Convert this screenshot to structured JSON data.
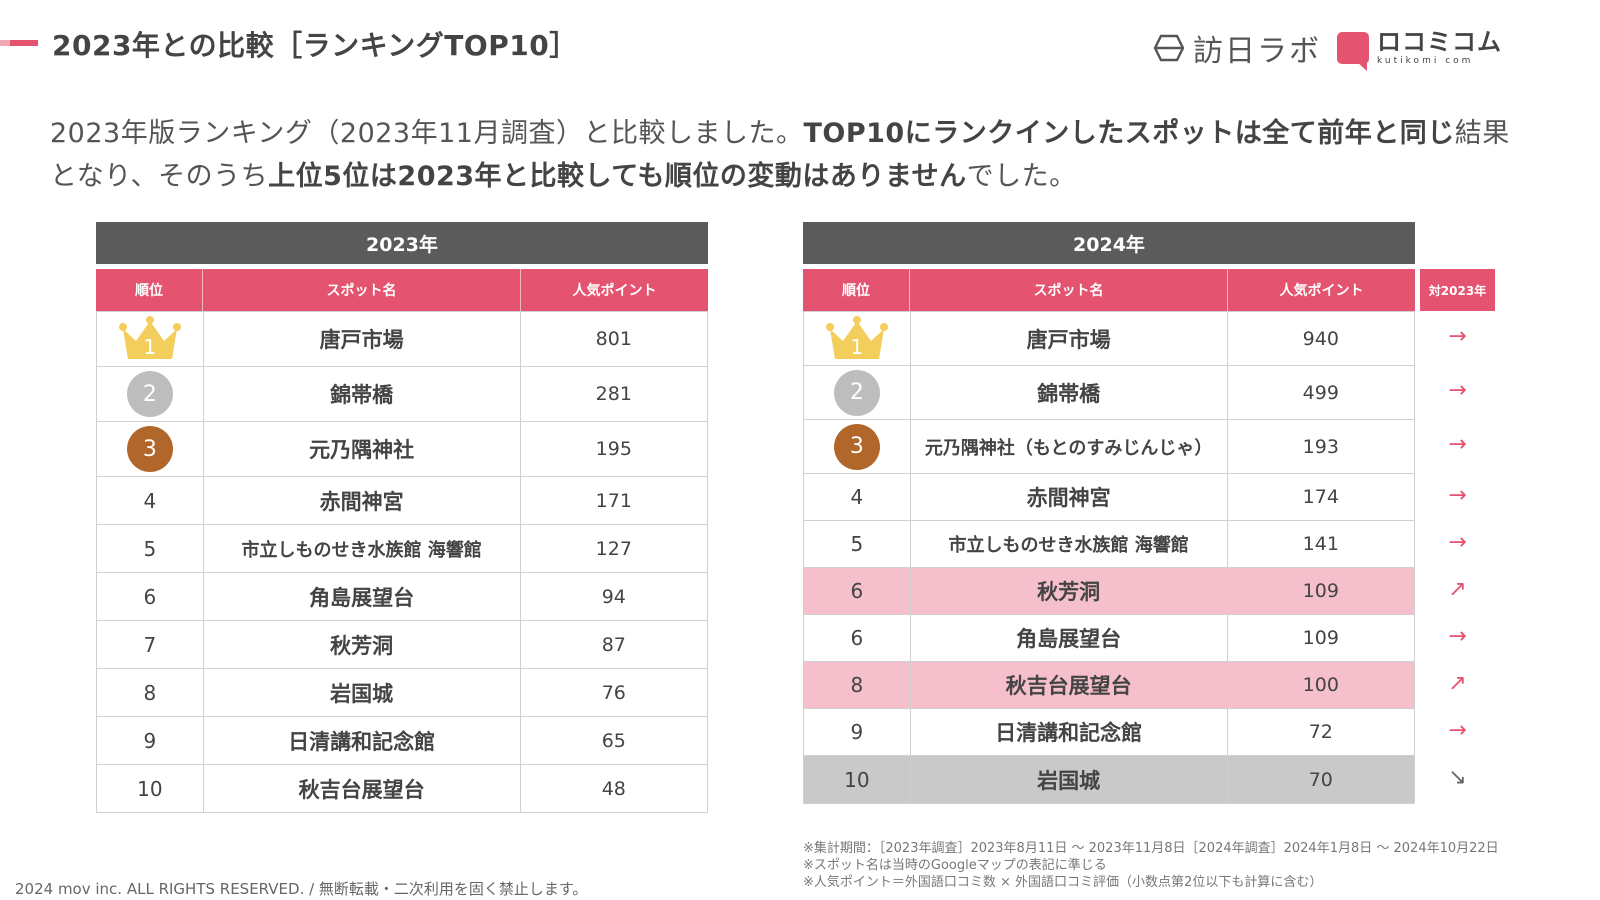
{
  "header": {
    "title": "2023年との比較［ランキングTOP10］",
    "logo_lab_text": "訪日ラボ",
    "logo_kuti_text": "ロコミコム",
    "logo_kuti_domain": "kutikomi com"
  },
  "lead": {
    "part1": "2023年版ランキング（2023年11月調査）と比較しました。",
    "part2": "TOP10にランクインしたスポットは全て前年と同じ",
    "part3": "結果となり、そのうち",
    "part4": "上位5位は2023年と比較しても順位の変動はありません",
    "part5": "でした。"
  },
  "columns": {
    "rank": "順位",
    "spot": "スポット名",
    "points": "人気ポイント",
    "compare": "対2023年"
  },
  "table_2023": {
    "year": "2023年",
    "rows": [
      {
        "rank": "1",
        "spot": "唐戸市場",
        "points": "801"
      },
      {
        "rank": "2",
        "spot": "錦帯橋",
        "points": "281"
      },
      {
        "rank": "3",
        "spot": "元乃隅神社",
        "points": "195"
      },
      {
        "rank": "4",
        "spot": "赤間神宮",
        "points": "171"
      },
      {
        "rank": "5",
        "spot": "市立しものせき水族館 海響館",
        "points": "127"
      },
      {
        "rank": "6",
        "spot": "角島展望台",
        "points": "94"
      },
      {
        "rank": "7",
        "spot": "秋芳洞",
        "points": "87"
      },
      {
        "rank": "8",
        "spot": "岩国城",
        "points": "76"
      },
      {
        "rank": "9",
        "spot": "日清講和記念館",
        "points": "65"
      },
      {
        "rank": "10",
        "spot": "秋吉台展望台",
        "points": "48"
      }
    ]
  },
  "table_2024": {
    "year": "2024年",
    "rows": [
      {
        "rank": "1",
        "spot": "唐戸市場",
        "points": "940",
        "trend": "→"
      },
      {
        "rank": "2",
        "spot": "錦帯橋",
        "points": "499",
        "trend": "→"
      },
      {
        "rank": "3",
        "spot": "元乃隅神社（もとのすみじんじゃ）",
        "points": "193",
        "trend": "→"
      },
      {
        "rank": "4",
        "spot": "赤間神宮",
        "points": "174",
        "trend": "→"
      },
      {
        "rank": "5",
        "spot": "市立しものせき水族館 海響館",
        "points": "141",
        "trend": "→"
      },
      {
        "rank": "6",
        "spot": "秋芳洞",
        "points": "109",
        "trend": "↗"
      },
      {
        "rank": "6",
        "spot": "角島展望台",
        "points": "109",
        "trend": "→"
      },
      {
        "rank": "8",
        "spot": "秋吉台展望台",
        "points": "100",
        "trend": "↗"
      },
      {
        "rank": "9",
        "spot": "日清講和記念館",
        "points": "72",
        "trend": "→"
      },
      {
        "rank": "10",
        "spot": "岩国城",
        "points": "70",
        "trend": "↘"
      }
    ]
  },
  "notes": [
    "※集計期間：［2023年調査］2023年8月11日 〜 2023年11月8日［2024年調査］2024年1月8日 〜 2024年10月22日",
    "※スポット名は当時のGoogleマップの表記に準じる",
    "※人気ポイント＝外国語口コミ数 × 外国語口コミ評価（小数点第2位以下も計算に含む）"
  ],
  "footer": "2024 mov inc. ALL RIGHTS RESERVED. / 無断転載・二次利用を固く禁止します。",
  "colors": {
    "accent": "#e4536f",
    "header_gray": "#5b5b5b",
    "highlight_up": "#f5bfcc",
    "highlight_down": "#c9c9c9",
    "gold": "#f3ce5c",
    "silver": "#bdbdbd",
    "bronze": "#b1672a"
  }
}
